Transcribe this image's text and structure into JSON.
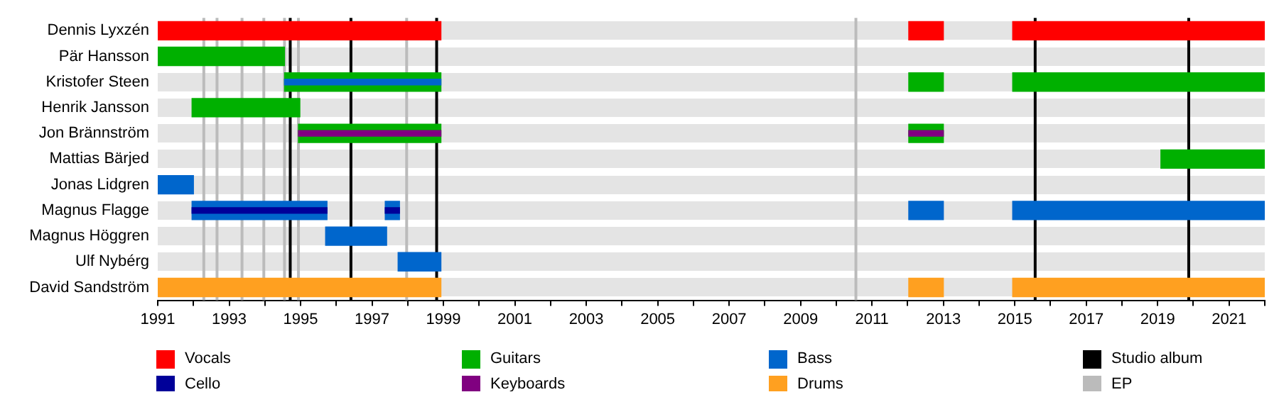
{
  "chart_data": {
    "type": "bar",
    "orientation": "horizontal",
    "categories": [
      "Dennis Lyxzén",
      "Pär Hansson",
      "Kristofer Steen",
      "Henrik Jansson",
      "Jon Brännström",
      "Mattias Bärjed",
      "Jonas Lidgren",
      "Magnus Flagge",
      "Magnus Höggren",
      "Ulf Nybérg",
      "David Sandström"
    ],
    "series": [
      {
        "name": "Vocals",
        "color": "#ff0000",
        "values": [
          7.93,
          null,
          null,
          null,
          null,
          null,
          null,
          null,
          null,
          null,
          null
        ],
        "base": [
          1991,
          null,
          null,
          null,
          null,
          null,
          null,
          null,
          null,
          null,
          null
        ]
      },
      {
        "name": "Cello",
        "color": "#000099",
        "values": [
          null,
          null,
          null,
          null,
          null,
          null,
          null,
          3.78,
          null,
          null,
          null
        ],
        "base": [
          null,
          null,
          null,
          null,
          null,
          null,
          null,
          1991.96,
          null,
          null,
          null
        ]
      },
      {
        "name": "Guitars",
        "color": "#00b000",
        "values": [
          null,
          3.55,
          4.38,
          3.02,
          3.99,
          null,
          null,
          null,
          null,
          null,
          null
        ],
        "base": [
          null,
          1991,
          1994.55,
          1991.96,
          1994.94,
          null,
          null,
          null,
          null,
          null,
          null
        ]
      },
      {
        "name": "Keyboards",
        "color": "#800080",
        "values": [
          null,
          null,
          null,
          null,
          3.99,
          null,
          null,
          null,
          null,
          null,
          null
        ],
        "base": [
          null,
          null,
          null,
          null,
          1994.94,
          null,
          null,
          null,
          null,
          null,
          null
        ]
      },
      {
        "name": "Bass",
        "color": "#0066cc",
        "values": [
          null,
          null,
          null,
          null,
          null,
          null,
          1.0,
          3.78,
          1.71,
          1.2,
          null
        ],
        "base": [
          null,
          null,
          null,
          null,
          null,
          null,
          1991,
          1991.96,
          1995.7,
          1997.73,
          null
        ]
      },
      {
        "name": "Drums",
        "color": "#ffa020",
        "values": [
          null,
          null,
          null,
          null,
          null,
          null,
          null,
          null,
          null,
          null,
          7.93
        ],
        "base": [
          null,
          null,
          null,
          null,
          null,
          null,
          null,
          null,
          null,
          null,
          1991
        ]
      },
      {
        "color": "#ff0000",
        "values": [
          0.97,
          null,
          null,
          null,
          null,
          null,
          null,
          null,
          null,
          null,
          null
        ],
        "base": [
          2012.03,
          null,
          null,
          null,
          null,
          null,
          null,
          null,
          null,
          null,
          null
        ]
      },
      {
        "color": "#ff0000",
        "values": [
          7.06,
          null,
          null,
          null,
          null,
          null,
          null,
          null,
          null,
          null,
          null
        ],
        "base": [
          2014.94,
          null,
          null,
          null,
          null,
          null,
          null,
          null,
          null,
          null,
          null
        ]
      },
      {
        "color": "#00b000",
        "values": [
          null,
          null,
          0.97,
          null,
          0.97,
          2.91,
          null,
          null,
          null,
          null,
          null
        ],
        "base": [
          null,
          null,
          2012.03,
          null,
          2012.03,
          2019.09,
          null,
          null,
          null,
          null,
          null
        ]
      },
      {
        "color": "#00b000",
        "values": [
          null,
          null,
          7.06,
          null,
          null,
          null,
          null,
          null,
          null,
          null,
          null
        ],
        "base": [
          null,
          null,
          2014.94,
          null,
          null,
          null,
          null,
          null,
          null,
          null,
          null
        ]
      },
      {
        "color": "#800080",
        "values": [
          null,
          null,
          null,
          null,
          0.97,
          null,
          null,
          null,
          null,
          null,
          null
        ],
        "base": [
          null,
          null,
          null,
          null,
          2012.03,
          null,
          null,
          null,
          null,
          null,
          null
        ]
      },
      {
        "color": "#0066cc",
        "values": [
          null,
          null,
          4.38,
          null,
          null,
          null,
          null,
          null,
          null,
          null,
          null
        ],
        "base": [
          null,
          null,
          1994.55,
          null,
          null,
          null,
          null,
          null,
          null,
          null,
          null
        ]
      },
      {
        "color": "#0066cc",
        "values": [
          null,
          null,
          null,
          null,
          null,
          null,
          null,
          0.4,
          null,
          null,
          null
        ],
        "base": [
          null,
          null,
          null,
          null,
          null,
          null,
          null,
          1997.37,
          null,
          null,
          null
        ]
      },
      {
        "color": "#000099",
        "values": [
          null,
          null,
          null,
          null,
          null,
          null,
          null,
          0.4,
          null,
          null,
          null
        ],
        "base": [
          null,
          null,
          null,
          null,
          null,
          null,
          null,
          1997.37,
          null,
          null,
          null
        ]
      },
      {
        "color": "#0066cc",
        "values": [
          null,
          null,
          null,
          null,
          null,
          null,
          null,
          0.97,
          null,
          null,
          null
        ],
        "base": [
          null,
          null,
          null,
          null,
          null,
          null,
          null,
          2012.03,
          null,
          null,
          null
        ]
      },
      {
        "color": "#0066cc",
        "values": [
          null,
          null,
          null,
          null,
          null,
          null,
          null,
          7.06,
          null,
          null,
          null
        ],
        "base": [
          null,
          null,
          null,
          null,
          null,
          null,
          null,
          2014.94,
          null,
          null,
          null
        ]
      },
      {
        "color": "#ffa020",
        "values": [
          null,
          null,
          null,
          null,
          null,
          null,
          null,
          null,
          null,
          null,
          0.97
        ],
        "base": [
          null,
          null,
          null,
          null,
          null,
          null,
          null,
          null,
          null,
          null,
          2012.03
        ]
      },
      {
        "color": "#ffa020",
        "values": [
          null,
          null,
          null,
          null,
          null,
          null,
          null,
          null,
          null,
          null,
          7.06
        ],
        "base": [
          null,
          null,
          null,
          null,
          null,
          null,
          null,
          null,
          null,
          null,
          2014.94
        ]
      }
    ],
    "xlim": [
      1991,
      2022
    ],
    "xticks": [
      1991,
      {
        "value": 1992,
        "label": null
      },
      1993,
      {
        "value": 1994,
        "label": null
      },
      1995,
      {
        "value": 1996,
        "label": null
      },
      1997,
      {
        "value": 1998,
        "label": null
      },
      1999,
      {
        "value": 2000,
        "label": null
      },
      2001,
      {
        "value": 2002,
        "label": null
      },
      2003,
      {
        "value": 2004,
        "label": null
      },
      2005,
      {
        "value": 2006,
        "label": null
      },
      2007,
      {
        "value": 2008,
        "label": null
      },
      2009,
      {
        "value": 2010,
        "label": null
      },
      2011,
      {
        "value": 2012,
        "label": null
      },
      2013,
      {
        "value": 2014,
        "label": null
      },
      2015,
      {
        "value": 2016,
        "label": null
      },
      2017,
      {
        "value": 2018,
        "label": null
      },
      2019,
      {
        "value": 2020,
        "label": null
      },
      2021,
      {
        "value": 2022,
        "label": null
      }
    ],
    "ref_lines": [
      {
        "axis": "x",
        "value": 1994.71,
        "label": "Studio album",
        "color": "#000000"
      },
      {
        "axis": "x",
        "value": 1996.41,
        "color": "#000000"
      },
      {
        "axis": "x",
        "value": 1998.81,
        "color": "#000000"
      },
      {
        "axis": "x",
        "value": 2015.57,
        "color": "#000000"
      },
      {
        "axis": "x",
        "value": 2019.87,
        "color": "#000000"
      },
      {
        "axis": "x",
        "value": 1992.29,
        "label": "EP",
        "color": "#bbbbbb"
      },
      {
        "axis": "x",
        "value": 1992.66,
        "color": "#bbbbbb"
      },
      {
        "axis": "x",
        "value": 1993.36,
        "color": "#bbbbbb"
      },
      {
        "axis": "x",
        "value": 1993.97,
        "color": "#bbbbbb"
      },
      {
        "axis": "x",
        "value": 1994.55,
        "color": "#bbbbbb"
      },
      {
        "axis": "x",
        "value": 1994.94,
        "color": "#bbbbbb"
      },
      {
        "axis": "x",
        "value": 1997.97,
        "color": "#bbbbbb"
      },
      {
        "axis": "x",
        "value": 2010.55,
        "color": "#bbbbbb"
      }
    ],
    "grid": "y",
    "legend": "bottom"
  }
}
